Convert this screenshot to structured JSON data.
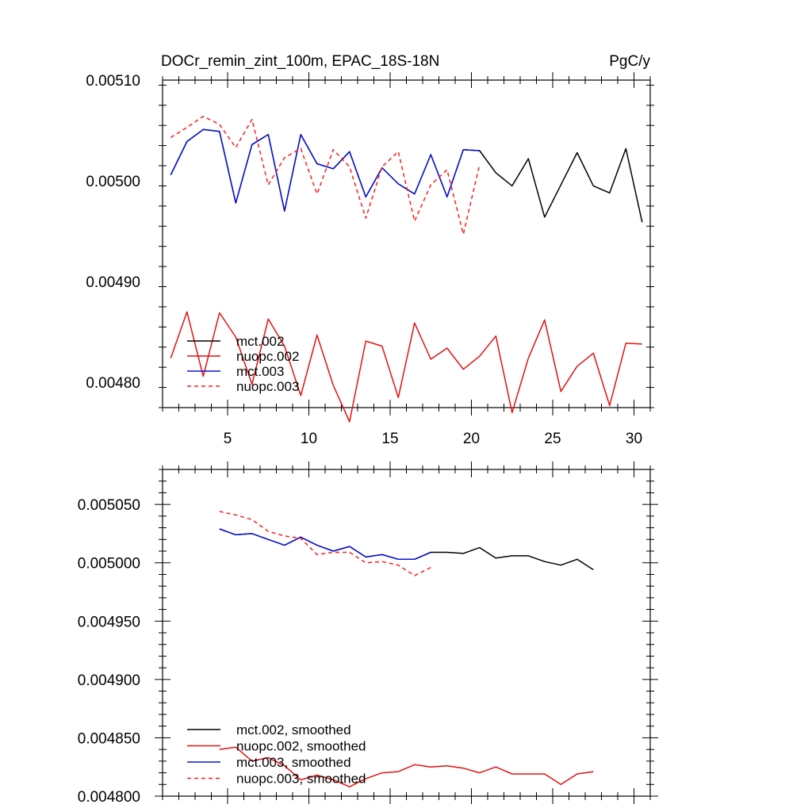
{
  "colors": {
    "mct_002": "#000000",
    "nuopc_002": "#e41010",
    "mct_003": "#0b14d6",
    "nuopc_003": "#ff1a1a"
  },
  "chart_data": [
    {
      "type": "line",
      "title": "DOCr_remin_zint_100m, EPAC_18S-18N",
      "units": "PgC/y",
      "xlim": [
        1,
        31
      ],
      "ylim": [
        0.004775,
        0.0051
      ],
      "xticks": [
        5,
        10,
        15,
        20,
        25,
        30
      ],
      "xtick_labels": [
        "5",
        "10",
        "15",
        "20",
        "25",
        "30"
      ],
      "yticks": [
        0.0048,
        0.0049,
        0.005,
        0.0051
      ],
      "ytick_labels": [
        "0.00480",
        "0.00490",
        "0.00500",
        "0.00510"
      ],
      "legend_position": "bottom-left",
      "series": [
        {
          "key": "mct_002",
          "name": "mct.002",
          "dash": "solid",
          "x": [
            1.5,
            2.5,
            3.5,
            4.5,
            5.5,
            6.5,
            7.5,
            8.5,
            9.5,
            10.5,
            11.5,
            12.5,
            13.5,
            14.5,
            15.5,
            16.5,
            17.5,
            18.5,
            19.5,
            20.5,
            21.5,
            22.5,
            23.5,
            24.5,
            25.5,
            26.5,
            27.5,
            28.5,
            29.5,
            30.5
          ],
          "values": [
            0.005006,
            0.005039,
            0.005051,
            0.005049,
            0.004978,
            0.005036,
            0.005046,
            0.00497,
            0.005046,
            0.005017,
            0.005012,
            0.005029,
            0.004984,
            0.005013,
            0.004997,
            0.004987,
            0.005026,
            0.004984,
            0.005031,
            0.00503,
            0.005008,
            0.004995,
            0.005022,
            0.004964,
            0.004996,
            0.005028,
            0.004995,
            0.004988,
            0.005032,
            0.004959
          ]
        },
        {
          "key": "nuopc_002",
          "name": "nuopc.002",
          "dash": "solid",
          "x": [
            1.5,
            2.5,
            3.5,
            4.5,
            5.5,
            6.5,
            7.5,
            8.5,
            9.5,
            10.5,
            11.5,
            12.5,
            13.5,
            14.5,
            15.5,
            16.5,
            17.5,
            18.5,
            19.5,
            20.5,
            21.5,
            22.5,
            23.5,
            24.5,
            25.5,
            26.5,
            27.5,
            28.5,
            29.5,
            30.5
          ],
          "values": [
            0.004824,
            0.00487,
            0.004806,
            0.004869,
            0.004845,
            0.004798,
            0.004863,
            0.004836,
            0.004787,
            0.004847,
            0.004797,
            0.004761,
            0.004841,
            0.004836,
            0.004785,
            0.004859,
            0.004823,
            0.004834,
            0.004813,
            0.004826,
            0.004846,
            0.00477,
            0.004824,
            0.004862,
            0.004791,
            0.004816,
            0.004829,
            0.004777,
            0.004839,
            0.004838
          ]
        },
        {
          "key": "mct_003",
          "name": "mct.003",
          "dash": "solid",
          "x": [
            1.5,
            2.5,
            3.5,
            4.5,
            5.5,
            6.5,
            7.5,
            8.5,
            9.5,
            10.5,
            11.5,
            12.5,
            13.5,
            14.5,
            15.5,
            16.5,
            17.5,
            18.5,
            19.5,
            20.5
          ],
          "values": [
            0.005006,
            0.005039,
            0.005051,
            0.005049,
            0.004978,
            0.005036,
            0.005046,
            0.00497,
            0.005046,
            0.005017,
            0.005012,
            0.005029,
            0.004984,
            0.005013,
            0.004997,
            0.004987,
            0.005026,
            0.004984,
            0.005031,
            0.00503
          ]
        },
        {
          "key": "nuopc_003",
          "name": "nuopc.003",
          "dash": "dashed",
          "x": [
            1.5,
            2.5,
            3.5,
            4.5,
            5.5,
            6.5,
            7.5,
            8.5,
            9.5,
            10.5,
            11.5,
            12.5,
            13.5,
            14.5,
            15.5,
            16.5,
            17.5,
            18.5,
            19.5,
            20.5
          ],
          "values": [
            0.005043,
            0.005053,
            0.005064,
            0.005056,
            0.005033,
            0.005061,
            0.004996,
            0.005023,
            0.005032,
            0.004987,
            0.005031,
            0.005014,
            0.004963,
            0.005014,
            0.005029,
            0.00496,
            0.004996,
            0.005011,
            0.004947,
            0.005016
          ]
        }
      ]
    },
    {
      "type": "line",
      "title": "",
      "xlim": [
        1,
        31
      ],
      "ylim": [
        0.0048,
        0.00508
      ],
      "xticks": [
        5,
        10,
        15,
        20,
        25,
        30
      ],
      "xtick_labels": [],
      "yticks": [
        0.0048,
        0.00485,
        0.0049,
        0.00495,
        0.005,
        0.00505
      ],
      "ytick_labels": [
        "0.004800",
        "0.004850",
        "0.004900",
        "0.004950",
        "0.005000",
        "0.005050"
      ],
      "legend_position": "bottom-left",
      "series": [
        {
          "key": "mct_002",
          "name": "mct.002, smoothed",
          "dash": "solid",
          "x": [
            4.5,
            5.5,
            6.5,
            7.5,
            8.5,
            9.5,
            10.5,
            11.5,
            12.5,
            13.5,
            14.5,
            15.5,
            16.5,
            17.5,
            18.5,
            19.5,
            20.5,
            21.5,
            22.5,
            23.5,
            24.5,
            25.5,
            26.5,
            27.5
          ],
          "values": [
            0.005029,
            0.005024,
            0.005025,
            0.00502,
            0.005015,
            0.005022,
            0.005015,
            0.00501,
            0.005014,
            0.005005,
            0.005007,
            0.005003,
            0.005003,
            0.005009,
            0.005009,
            0.005008,
            0.005013,
            0.005004,
            0.005006,
            0.005006,
            0.005001,
            0.004998,
            0.005003,
            0.004994
          ]
        },
        {
          "key": "nuopc_002",
          "name": "nuopc.002, smoothed",
          "dash": "solid",
          "x": [
            4.5,
            5.5,
            6.5,
            7.5,
            8.5,
            9.5,
            10.5,
            11.5,
            12.5,
            13.5,
            14.5,
            15.5,
            16.5,
            17.5,
            18.5,
            19.5,
            20.5,
            21.5,
            22.5,
            23.5,
            24.5,
            25.5,
            26.5,
            27.5
          ],
          "values": [
            0.00484,
            0.004842,
            0.00483,
            0.004833,
            0.004826,
            0.004814,
            0.004818,
            0.004814,
            0.004808,
            0.004815,
            0.00482,
            0.004821,
            0.004827,
            0.004825,
            0.004826,
            0.004824,
            0.00482,
            0.004825,
            0.004819,
            0.004819,
            0.004819,
            0.00481,
            0.004819,
            0.004821
          ]
        },
        {
          "key": "mct_003",
          "name": "mct.003, smoothed",
          "dash": "solid",
          "x": [
            4.5,
            5.5,
            6.5,
            7.5,
            8.5,
            9.5,
            10.5,
            11.5,
            12.5,
            13.5,
            14.5,
            15.5,
            16.5,
            17.5
          ],
          "values": [
            0.005029,
            0.005024,
            0.005025,
            0.00502,
            0.005015,
            0.005022,
            0.005015,
            0.00501,
            0.005014,
            0.005005,
            0.005007,
            0.005003,
            0.005003,
            0.005009
          ]
        },
        {
          "key": "nuopc_003",
          "name": "nuopc.003, smoothed",
          "dash": "dashed",
          "x": [
            4.5,
            5.5,
            6.5,
            7.5,
            8.5,
            9.5,
            10.5,
            11.5,
            12.5,
            13.5,
            14.5,
            15.5,
            16.5,
            17.5
          ],
          "values": [
            0.005044,
            0.005041,
            0.005037,
            0.005027,
            0.005023,
            0.005021,
            0.005007,
            0.005009,
            0.005009,
            0.005,
            0.005001,
            0.004998,
            0.004989,
            0.004996
          ]
        }
      ]
    }
  ]
}
